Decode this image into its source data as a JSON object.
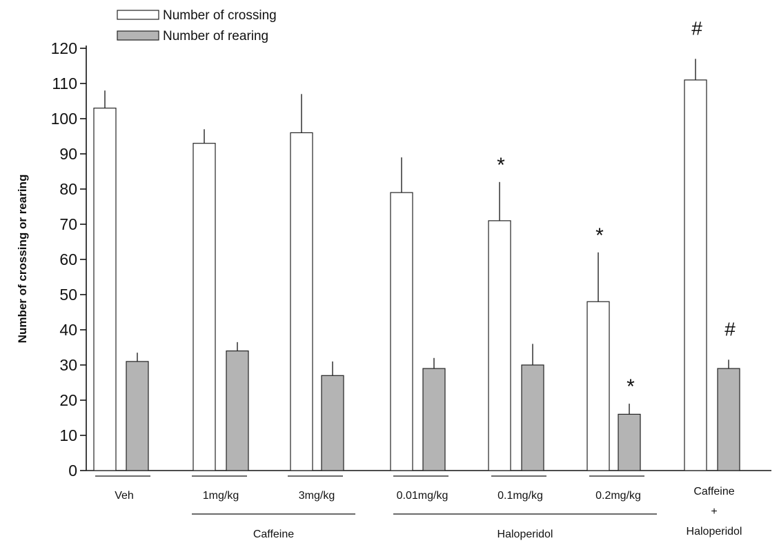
{
  "chart_data": {
    "type": "bar",
    "ylabel": "Number of crossing or rearing",
    "xlabel": "",
    "ylim": [
      0,
      120
    ],
    "yticks": [
      0,
      10,
      20,
      30,
      40,
      50,
      60,
      70,
      80,
      90,
      100,
      110,
      120
    ],
    "categories": [
      "Veh",
      "1mg/kg",
      "3mg/kg",
      "0.01mg/kg",
      "0.1mg/kg",
      "0.2mg/kg",
      "Caffeine + Haloperidol"
    ],
    "category_lines": [
      [
        "Veh"
      ],
      [
        "1mg/kg"
      ],
      [
        "3mg/kg"
      ],
      [
        "0.01mg/kg"
      ],
      [
        "0.1mg/kg"
      ],
      [
        "0.2mg/kg"
      ],
      [
        "Caffeine",
        "+",
        "Haloperidol"
      ]
    ],
    "groups": [
      {
        "label": "Caffeine",
        "categories": [
          1,
          2
        ]
      },
      {
        "label": "Haloperidol",
        "categories": [
          3,
          4,
          5
        ]
      }
    ],
    "series": [
      {
        "name": "Number of crossing",
        "color": "#ffffff",
        "values": [
          103,
          93,
          96,
          79,
          71,
          48,
          111
        ],
        "errors": [
          5,
          4,
          11,
          10,
          11,
          14,
          6
        ]
      },
      {
        "name": "Number of rearing",
        "color": "#b4b4b4",
        "values": [
          31,
          34,
          27,
          29,
          30,
          16,
          29
        ],
        "errors": [
          2.5,
          2.5,
          4,
          3,
          6,
          3,
          2.5
        ]
      }
    ],
    "annotations": [
      {
        "category": 4,
        "series": 0,
        "text": "*"
      },
      {
        "category": 5,
        "series": 0,
        "text": "*"
      },
      {
        "category": 5,
        "series": 1,
        "text": "*"
      },
      {
        "category": 6,
        "series": 0,
        "text": "#"
      },
      {
        "category": 6,
        "series": 1,
        "text": "#"
      }
    ],
    "legend_position": "top-left"
  }
}
